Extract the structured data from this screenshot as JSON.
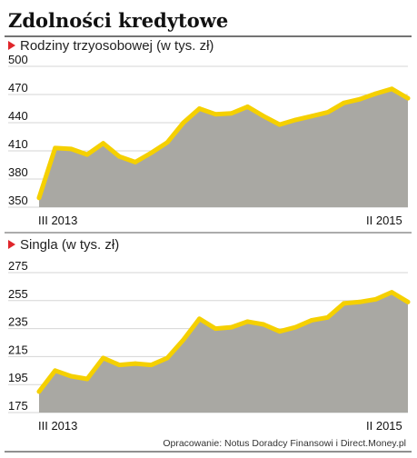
{
  "header": {
    "title": "Zdolności kredytowe"
  },
  "source": "Opracowanie: Notus Doradcy Finansowi i Direct.Money.pl",
  "colors": {
    "line": "#f5d000",
    "area": "#a9a8a3",
    "grid": "#d6d6d6",
    "marker": "#e0262b",
    "rule": "#222222"
  },
  "chart_data": [
    {
      "type": "area",
      "title": "Rodziny trzyosobowej (w tys. zł)",
      "x_start_label": "III 2013",
      "x_end_label": "II 2015",
      "yticks": [
        500,
        470,
        440,
        410,
        380,
        350
      ],
      "ylim": [
        350,
        500
      ],
      "grid": true,
      "values": [
        360,
        413,
        412,
        406,
        418,
        404,
        398,
        408,
        419,
        440,
        455,
        449,
        450,
        457,
        447,
        438,
        443,
        447,
        451,
        461,
        465,
        471,
        476,
        466
      ]
    },
    {
      "type": "area",
      "title": "Singla (w tys. zł)",
      "x_start_label": "III 2013",
      "x_end_label": "II 2015",
      "yticks": [
        275,
        255,
        235,
        215,
        195,
        175
      ],
      "ylim": [
        175,
        275
      ],
      "grid": true,
      "values": [
        190,
        205,
        201,
        199,
        214,
        209,
        210,
        209,
        214,
        227,
        242,
        235,
        236,
        240,
        238,
        233,
        236,
        241,
        243,
        253,
        254,
        256,
        261,
        254
      ]
    }
  ]
}
